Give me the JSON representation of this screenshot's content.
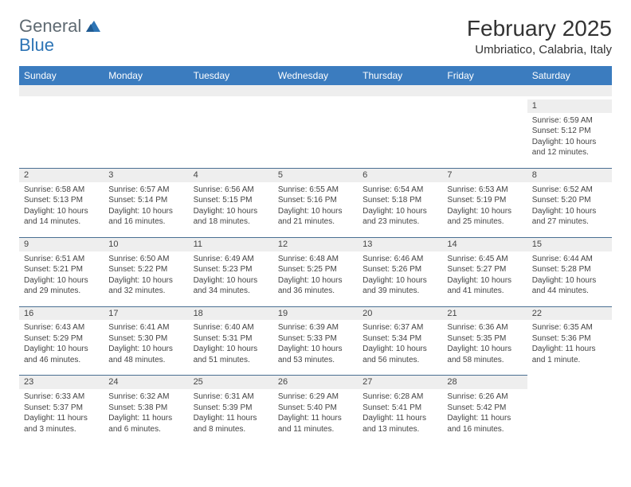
{
  "logo": {
    "part1": "General",
    "part2": "Blue"
  },
  "month_title": "February 2025",
  "location": "Umbriatico, Calabria, Italy",
  "colors": {
    "header_bg": "#3b7cbf",
    "header_text": "#ffffff",
    "stripe_bg": "#eeeeee",
    "daynum_border": "#4a6f92",
    "body_text": "#444444",
    "logo_gray": "#5f6a72",
    "logo_blue": "#2d74b5"
  },
  "day_headers": [
    "Sunday",
    "Monday",
    "Tuesday",
    "Wednesday",
    "Thursday",
    "Friday",
    "Saturday"
  ],
  "weeks": [
    [
      {
        "empty": true
      },
      {
        "empty": true
      },
      {
        "empty": true
      },
      {
        "empty": true
      },
      {
        "empty": true
      },
      {
        "empty": true
      },
      {
        "day": "1",
        "sunrise": "Sunrise: 6:59 AM",
        "sunset": "Sunset: 5:12 PM",
        "daylight": "Daylight: 10 hours and 12 minutes."
      }
    ],
    [
      {
        "day": "2",
        "sunrise": "Sunrise: 6:58 AM",
        "sunset": "Sunset: 5:13 PM",
        "daylight": "Daylight: 10 hours and 14 minutes."
      },
      {
        "day": "3",
        "sunrise": "Sunrise: 6:57 AM",
        "sunset": "Sunset: 5:14 PM",
        "daylight": "Daylight: 10 hours and 16 minutes."
      },
      {
        "day": "4",
        "sunrise": "Sunrise: 6:56 AM",
        "sunset": "Sunset: 5:15 PM",
        "daylight": "Daylight: 10 hours and 18 minutes."
      },
      {
        "day": "5",
        "sunrise": "Sunrise: 6:55 AM",
        "sunset": "Sunset: 5:16 PM",
        "daylight": "Daylight: 10 hours and 21 minutes."
      },
      {
        "day": "6",
        "sunrise": "Sunrise: 6:54 AM",
        "sunset": "Sunset: 5:18 PM",
        "daylight": "Daylight: 10 hours and 23 minutes."
      },
      {
        "day": "7",
        "sunrise": "Sunrise: 6:53 AM",
        "sunset": "Sunset: 5:19 PM",
        "daylight": "Daylight: 10 hours and 25 minutes."
      },
      {
        "day": "8",
        "sunrise": "Sunrise: 6:52 AM",
        "sunset": "Sunset: 5:20 PM",
        "daylight": "Daylight: 10 hours and 27 minutes."
      }
    ],
    [
      {
        "day": "9",
        "sunrise": "Sunrise: 6:51 AM",
        "sunset": "Sunset: 5:21 PM",
        "daylight": "Daylight: 10 hours and 29 minutes."
      },
      {
        "day": "10",
        "sunrise": "Sunrise: 6:50 AM",
        "sunset": "Sunset: 5:22 PM",
        "daylight": "Daylight: 10 hours and 32 minutes."
      },
      {
        "day": "11",
        "sunrise": "Sunrise: 6:49 AM",
        "sunset": "Sunset: 5:23 PM",
        "daylight": "Daylight: 10 hours and 34 minutes."
      },
      {
        "day": "12",
        "sunrise": "Sunrise: 6:48 AM",
        "sunset": "Sunset: 5:25 PM",
        "daylight": "Daylight: 10 hours and 36 minutes."
      },
      {
        "day": "13",
        "sunrise": "Sunrise: 6:46 AM",
        "sunset": "Sunset: 5:26 PM",
        "daylight": "Daylight: 10 hours and 39 minutes."
      },
      {
        "day": "14",
        "sunrise": "Sunrise: 6:45 AM",
        "sunset": "Sunset: 5:27 PM",
        "daylight": "Daylight: 10 hours and 41 minutes."
      },
      {
        "day": "15",
        "sunrise": "Sunrise: 6:44 AM",
        "sunset": "Sunset: 5:28 PM",
        "daylight": "Daylight: 10 hours and 44 minutes."
      }
    ],
    [
      {
        "day": "16",
        "sunrise": "Sunrise: 6:43 AM",
        "sunset": "Sunset: 5:29 PM",
        "daylight": "Daylight: 10 hours and 46 minutes."
      },
      {
        "day": "17",
        "sunrise": "Sunrise: 6:41 AM",
        "sunset": "Sunset: 5:30 PM",
        "daylight": "Daylight: 10 hours and 48 minutes."
      },
      {
        "day": "18",
        "sunrise": "Sunrise: 6:40 AM",
        "sunset": "Sunset: 5:31 PM",
        "daylight": "Daylight: 10 hours and 51 minutes."
      },
      {
        "day": "19",
        "sunrise": "Sunrise: 6:39 AM",
        "sunset": "Sunset: 5:33 PM",
        "daylight": "Daylight: 10 hours and 53 minutes."
      },
      {
        "day": "20",
        "sunrise": "Sunrise: 6:37 AM",
        "sunset": "Sunset: 5:34 PM",
        "daylight": "Daylight: 10 hours and 56 minutes."
      },
      {
        "day": "21",
        "sunrise": "Sunrise: 6:36 AM",
        "sunset": "Sunset: 5:35 PM",
        "daylight": "Daylight: 10 hours and 58 minutes."
      },
      {
        "day": "22",
        "sunrise": "Sunrise: 6:35 AM",
        "sunset": "Sunset: 5:36 PM",
        "daylight": "Daylight: 11 hours and 1 minute."
      }
    ],
    [
      {
        "day": "23",
        "sunrise": "Sunrise: 6:33 AM",
        "sunset": "Sunset: 5:37 PM",
        "daylight": "Daylight: 11 hours and 3 minutes."
      },
      {
        "day": "24",
        "sunrise": "Sunrise: 6:32 AM",
        "sunset": "Sunset: 5:38 PM",
        "daylight": "Daylight: 11 hours and 6 minutes."
      },
      {
        "day": "25",
        "sunrise": "Sunrise: 6:31 AM",
        "sunset": "Sunset: 5:39 PM",
        "daylight": "Daylight: 11 hours and 8 minutes."
      },
      {
        "day": "26",
        "sunrise": "Sunrise: 6:29 AM",
        "sunset": "Sunset: 5:40 PM",
        "daylight": "Daylight: 11 hours and 11 minutes."
      },
      {
        "day": "27",
        "sunrise": "Sunrise: 6:28 AM",
        "sunset": "Sunset: 5:41 PM",
        "daylight": "Daylight: 11 hours and 13 minutes."
      },
      {
        "day": "28",
        "sunrise": "Sunrise: 6:26 AM",
        "sunset": "Sunset: 5:42 PM",
        "daylight": "Daylight: 11 hours and 16 minutes."
      },
      {
        "empty": true
      }
    ]
  ]
}
